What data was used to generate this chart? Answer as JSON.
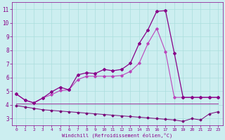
{
  "x": [
    0,
    1,
    2,
    3,
    4,
    5,
    6,
    7,
    8,
    9,
    10,
    11,
    12,
    13,
    14,
    15,
    16,
    17,
    18,
    19,
    20,
    21,
    22,
    23
  ],
  "line1": [
    4.8,
    4.35,
    4.15,
    4.5,
    4.95,
    5.3,
    5.1,
    6.2,
    6.35,
    6.3,
    6.6,
    6.5,
    6.6,
    7.05,
    8.5,
    9.5,
    10.85,
    10.9,
    7.8,
    4.55,
    4.55,
    4.55,
    4.55,
    4.55
  ],
  "line2": [
    4.8,
    4.35,
    4.15,
    4.5,
    4.75,
    5.05,
    5.1,
    5.85,
    6.1,
    6.1,
    6.1,
    6.1,
    6.15,
    6.45,
    7.05,
    8.5,
    9.6,
    7.9,
    4.55,
    4.55,
    4.55,
    4.55,
    4.55,
    4.55
  ],
  "line3": [
    4.1,
    4.1,
    4.1,
    4.1,
    4.1,
    4.1,
    4.1,
    4.1,
    4.1,
    4.1,
    4.1,
    4.1,
    4.1,
    4.1,
    4.1,
    4.1,
    4.1,
    4.1,
    4.1,
    4.1,
    4.1,
    4.1,
    4.1,
    4.1
  ],
  "line4": [
    3.95,
    3.85,
    3.75,
    3.65,
    3.6,
    3.55,
    3.5,
    3.45,
    3.4,
    3.35,
    3.3,
    3.25,
    3.2,
    3.15,
    3.1,
    3.05,
    3.0,
    2.95,
    2.9,
    2.8,
    3.0,
    2.9,
    3.35,
    3.5
  ],
  "main_color": "#880088",
  "line_color2": "#bb44bb",
  "line_color3": "#993399",
  "line_color4": "#770077",
  "bg_color": "#cceef0",
  "grid_color": "#aadddd",
  "xlabel": "Windchill (Refroidissement éolien,°C)",
  "ylim": [
    2.5,
    11.5
  ],
  "xlim": [
    -0.5,
    23.5
  ],
  "yticks": [
    3,
    4,
    5,
    6,
    7,
    8,
    9,
    10,
    11
  ],
  "xticks": [
    0,
    1,
    2,
    3,
    4,
    5,
    6,
    7,
    8,
    9,
    10,
    11,
    12,
    13,
    14,
    15,
    16,
    17,
    18,
    19,
    20,
    21,
    22,
    23
  ]
}
